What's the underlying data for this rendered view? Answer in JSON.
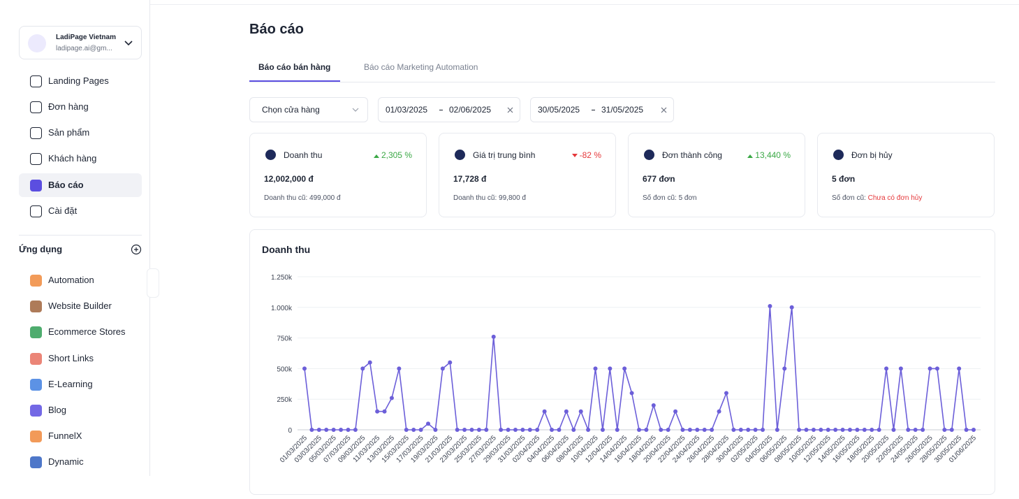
{
  "sidebar": {
    "account": {
      "name": "LadiPage Vietnam",
      "email": "ladipage.ai@gm..."
    },
    "menu": [
      "Landing Pages",
      "Đơn hàng",
      "Sản phẩm",
      "Khách hàng",
      "Báo cáo",
      "Cài đặt"
    ],
    "active": 4,
    "apps_title": "Ứng dụng",
    "apps": [
      "Automation",
      "Website Builder",
      "Ecommerce Stores",
      "Short Links",
      "E-Learning",
      "Blog",
      "FunnelX",
      "Dynamic"
    ]
  },
  "header": {
    "title": "Báo cáo",
    "tabs": [
      "Báo cáo bán hàng",
      "Báo cáo Marketing Automation"
    ],
    "active_tab": 0
  },
  "filters": {
    "store": "Chọn cửa hàng",
    "range1": {
      "from": "01/03/2025",
      "to": "02/06/2025"
    },
    "range2": {
      "from": "30/05/2025",
      "to": "31/05/2025"
    }
  },
  "cards": [
    {
      "label": "Doanh thu",
      "change": "2,305 %",
      "direction": "up",
      "value": "12,002,000 đ",
      "previous_label": "Doanh thu cũ:",
      "previous_value": "499,000 đ"
    },
    {
      "label": "Giá trị trung bình",
      "change": "-82 %",
      "direction": "down",
      "value": "17,728 đ",
      "previous_label": "Doanh thu cũ:",
      "previous_value": "99,800 đ"
    },
    {
      "label": "Đơn thành công",
      "change": "13,440 %",
      "direction": "up",
      "value": "677 đơn",
      "previous_label": "Số đơn cũ:",
      "previous_value": "5 đơn"
    },
    {
      "label": "Đơn bị hủy",
      "value": "5 đơn",
      "previous_label": "Số đơn cũ:",
      "previous_value": "Chưa có đơn hủy",
      "previous_alert": true
    }
  ],
  "chart_data": {
    "type": "line",
    "title": "Doanh thu",
    "color": "#6c5fd9",
    "grid": true,
    "categories": [
      "01/03/2025",
      null,
      "03/03/2025",
      null,
      "05/03/2025",
      null,
      "07/03/2025",
      null,
      "09/03/2025",
      null,
      "11/03/2025",
      null,
      "13/03/2025",
      null,
      "15/03/2025",
      null,
      "17/03/2025",
      null,
      "19/03/2025",
      null,
      "21/03/2025",
      null,
      "23/03/2025",
      null,
      "25/03/2025",
      null,
      "27/03/2025",
      null,
      "29/03/2025",
      null,
      "31/03/2025",
      null,
      "02/04/2025",
      null,
      "04/04/2025",
      null,
      "06/04/2025",
      null,
      "08/04/2025",
      null,
      "10/04/2025",
      null,
      "12/04/2025",
      null,
      "14/04/2025",
      null,
      "16/04/2025",
      null,
      "18/04/2025",
      null,
      "20/04/2025",
      null,
      "22/04/2025",
      null,
      "24/04/2025",
      null,
      "26/04/2025",
      null,
      "28/04/2025",
      null,
      "30/04/2025",
      null,
      "02/05/2025",
      null,
      "04/05/2025",
      null,
      "06/05/2025",
      null,
      "08/05/2025",
      null,
      "10/05/2025",
      null,
      "12/05/2025",
      null,
      "14/05/2025",
      null,
      "16/05/2025",
      null,
      "18/05/2025",
      null,
      "20/05/2025",
      null,
      "22/05/2025",
      null,
      "24/05/2025",
      null,
      "26/05/2025",
      null,
      "28/05/2025",
      null,
      "30/05/2025",
      null,
      "01/06/2025"
    ],
    "values": [
      500000,
      0,
      0,
      0,
      0,
      0,
      0,
      0,
      500000,
      550000,
      150000,
      150000,
      260000,
      500000,
      0,
      0,
      0,
      50000,
      0,
      500000,
      550000,
      0,
      0,
      0,
      0,
      0,
      760000,
      0,
      0,
      0,
      0,
      0,
      0,
      150000,
      0,
      0,
      150000,
      0,
      150000,
      0,
      500000,
      0,
      500000,
      0,
      500000,
      300000,
      0,
      0,
      200000,
      0,
      0,
      150000,
      0,
      0,
      0,
      0,
      0,
      150000,
      300000,
      0,
      0,
      0,
      0,
      0,
      1010000,
      0,
      500000,
      1000000,
      0,
      0,
      0,
      0,
      0,
      0,
      0,
      0,
      0,
      0,
      0,
      0,
      500000,
      0,
      500000,
      0,
      0,
      0,
      500000,
      500000,
      0,
      0,
      500000,
      0,
      0
    ],
    "ylim": [
      0,
      1250000
    ],
    "yticks": [
      0,
      {
        "value": 250000,
        "label": "250k"
      },
      {
        "value": 500000,
        "label": "500k"
      },
      {
        "value": 750000,
        "label": "750k"
      },
      {
        "value": 1000000,
        "label": "1.000k"
      },
      {
        "value": 1250000,
        "label": "1.250k"
      }
    ]
  }
}
